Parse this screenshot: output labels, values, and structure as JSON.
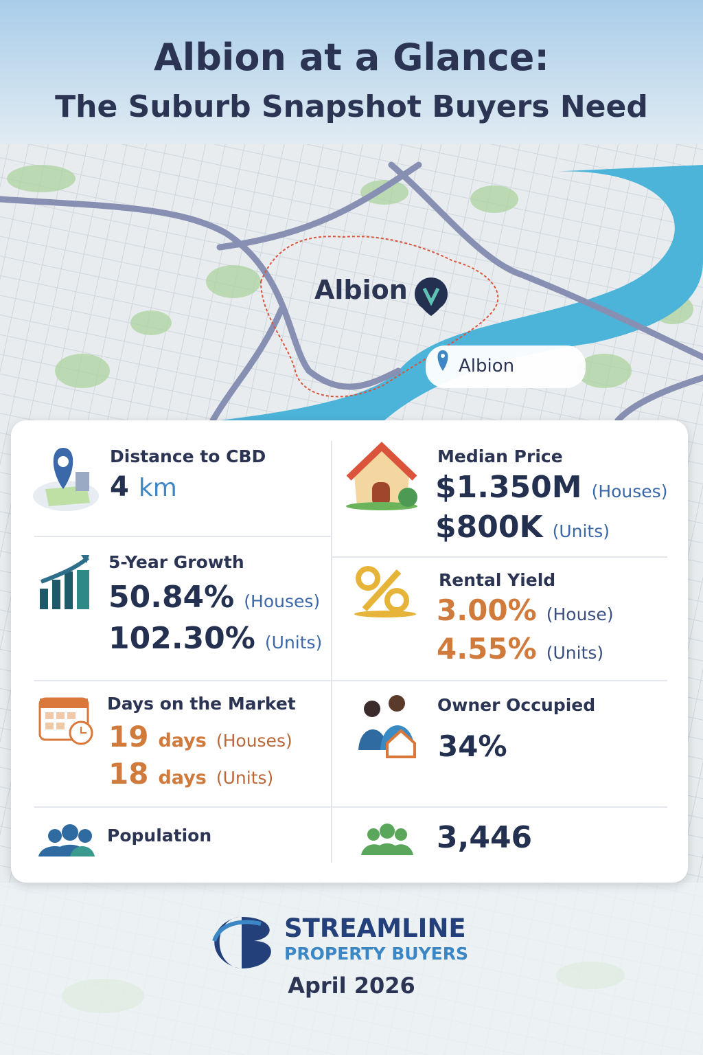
{
  "header": {
    "title": "Albion at a Glance:",
    "subtitle": "The Suburb Snapshot Buyers Need"
  },
  "map": {
    "label": "Albion",
    "search": "Albion"
  },
  "stats": [
    {
      "label": "Distance to CBD",
      "lines": [
        {
          "value": "4",
          "unit": "km"
        }
      ]
    },
    {
      "label": "5-Year Growth",
      "lines": [
        {
          "value": "50.84%",
          "note": "(Houses)"
        },
        {
          "value": "102.30%",
          "note": "(Units)"
        }
      ]
    },
    {
      "label": "Days on the Market",
      "lines": [
        {
          "value": "19",
          "unit": "days",
          "note": "(Houses)"
        },
        {
          "value": "18",
          "unit": "days",
          "note": "(Units)"
        }
      ]
    },
    {
      "label": "Population",
      "lines": [
        {
          "value": "3,446"
        }
      ]
    },
    {
      "label": "Median Price",
      "lines": [
        {
          "value": "$1.350M",
          "note": "(Houses)"
        },
        {
          "value": "$800K",
          "note": "(Units)"
        }
      ]
    },
    {
      "label": "Rental Yield",
      "lines": [
        {
          "value": "3.00%",
          "note": "(House)"
        },
        {
          "value": "4.55%",
          "note": "(Units)"
        }
      ]
    },
    {
      "label": "Owner Occupied",
      "lines": [
        {
          "value": "34%"
        }
      ]
    }
  ],
  "footer": {
    "brand": "STREAMLINE",
    "tagline": "PROPERTY BUYERS",
    "date": "April 2026"
  }
}
